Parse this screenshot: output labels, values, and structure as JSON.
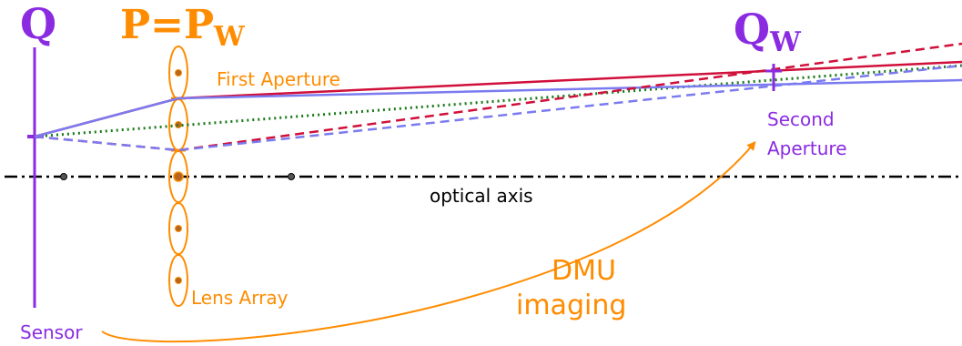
{
  "labels": {
    "q": "Q",
    "p_main": "P=P",
    "p_sub": "W",
    "qw_main": "Q",
    "qw_sub": "W",
    "first_aperture": "First Aperture",
    "second_aperture_line1": "Second",
    "second_aperture_line2": "Aperture",
    "optical_axis": "optical axis",
    "lens_array": "Lens Array",
    "sensor": "Sensor",
    "dmu_line1": "DMU",
    "dmu_line2": "imaging"
  },
  "colors": {
    "purple": "#8a2be2",
    "orange": "#ff8c00",
    "crimson": "#d0103a",
    "periwinkle": "#7b7bf0",
    "green": "#1a7a1a",
    "axis": "#000000"
  },
  "lens_array": {
    "lens_count": 5,
    "center_dot_rows": 6
  }
}
